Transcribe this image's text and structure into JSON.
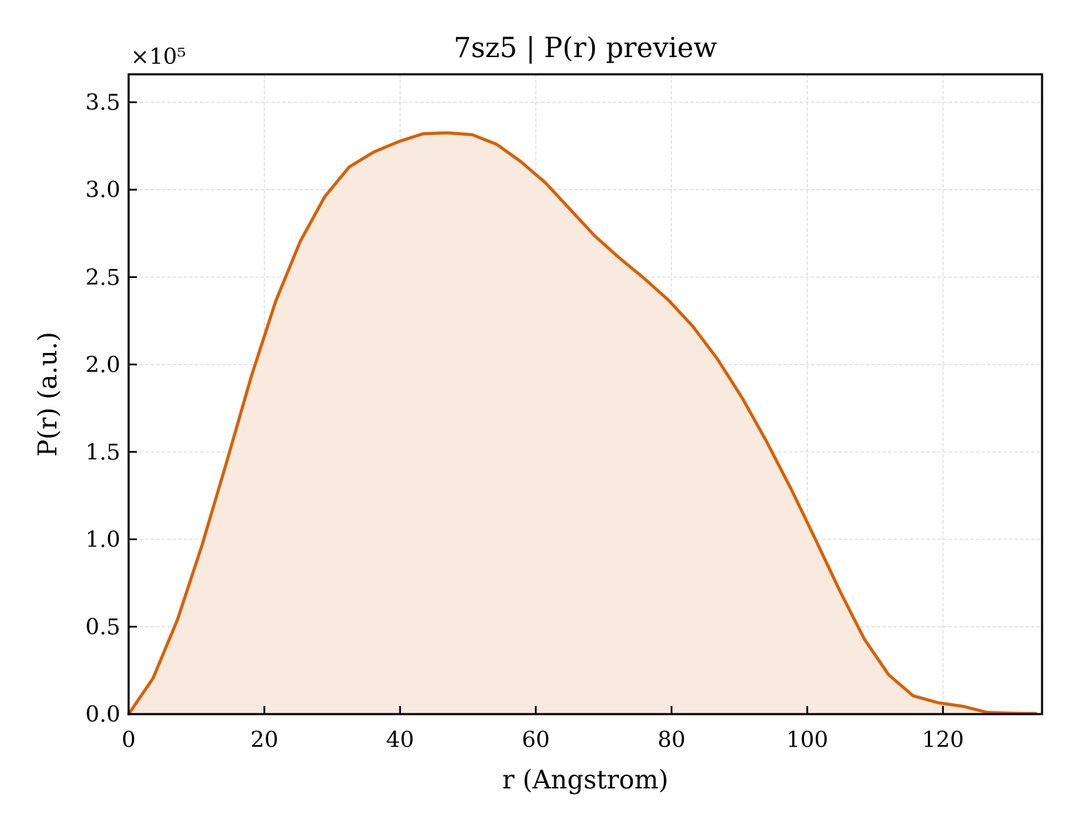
{
  "chart_data": {
    "type": "area",
    "title": "7sz5 | P(r) preview",
    "xlabel": "r (Angstrom)",
    "ylabel": "P(r) (a.u.)",
    "y_offset_label": "×10⁵",
    "y_scale_factor": 100000,
    "xlim": [
      0,
      134.6
    ],
    "ylim": [
      0,
      366000
    ],
    "grid": true,
    "legend": "none",
    "x_ticks": [
      {
        "value": 0,
        "label": "0"
      },
      {
        "value": 20,
        "label": "20"
      },
      {
        "value": 40,
        "label": "40"
      },
      {
        "value": 60,
        "label": "60"
      },
      {
        "value": 80,
        "label": "80"
      },
      {
        "value": 100,
        "label": "100"
      },
      {
        "value": 120,
        "label": "120"
      }
    ],
    "y_ticks": [
      {
        "value": 0,
        "label": "0.0"
      },
      {
        "value": 50000,
        "label": "0.5"
      },
      {
        "value": 100000,
        "label": "1.0"
      },
      {
        "value": 150000,
        "label": "1.5"
      },
      {
        "value": 200000,
        "label": "2.0"
      },
      {
        "value": 250000,
        "label": "2.5"
      },
      {
        "value": 300000,
        "label": "3.0"
      },
      {
        "value": 350000,
        "label": "3.5"
      }
    ],
    "series": [
      {
        "line_color": "#d95f02",
        "fill_color": "#f8eadf",
        "x": [
          0,
          3.6,
          7.2,
          10.8,
          14.5,
          18.1,
          21.7,
          25.3,
          28.9,
          32.5,
          36.1,
          39.8,
          43.4,
          47.0,
          50.6,
          54.2,
          57.8,
          61.4,
          65.0,
          68.7,
          72.3,
          75.9,
          79.5,
          83.1,
          86.7,
          90.4,
          94.0,
          97.6,
          101.2,
          104.8,
          108.4,
          112.0,
          115.6,
          119.3,
          122.9,
          126.5,
          130.1,
          133.7
        ],
        "y": [
          0,
          20500,
          54000,
          96500,
          145000,
          193500,
          236500,
          270500,
          296000,
          313000,
          321500,
          327500,
          332000,
          332500,
          331500,
          326000,
          316000,
          304000,
          289000,
          273500,
          261000,
          249500,
          237000,
          222000,
          203500,
          181000,
          156000,
          129000,
          100000,
          70500,
          43000,
          22500,
          10500,
          6500,
          4500,
          1000,
          500,
          300
        ]
      }
    ]
  }
}
